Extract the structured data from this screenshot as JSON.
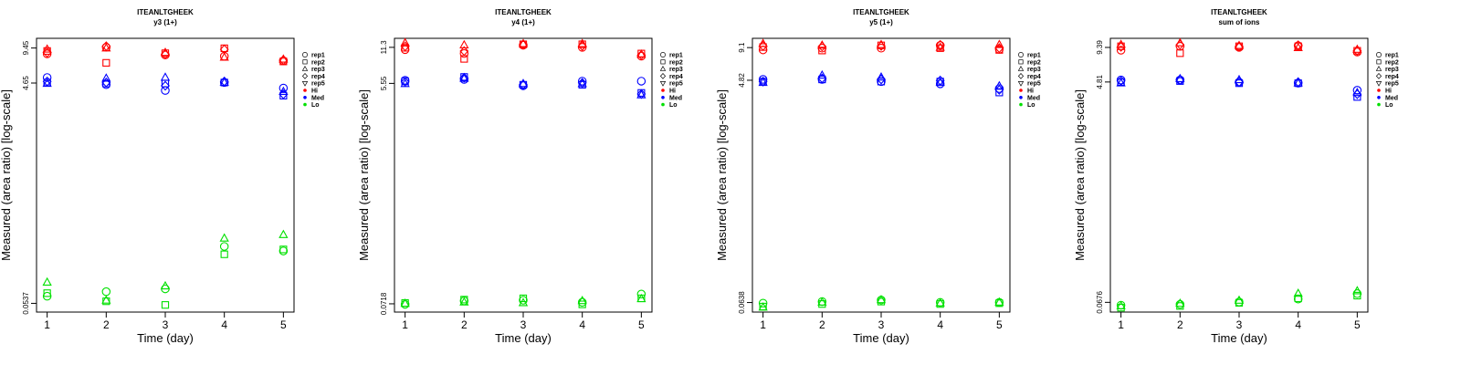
{
  "colors": {
    "Hi": "#ff0000",
    "Med": "#0000ff",
    "Lo": "#00e000"
  },
  "legend": {
    "replicates": [
      {
        "label": "rep1",
        "shape": "circle"
      },
      {
        "label": "rep2",
        "shape": "square"
      },
      {
        "label": "rep3",
        "shape": "triangle-up"
      },
      {
        "label": "rep4",
        "shape": "diamond"
      },
      {
        "label": "rep5",
        "shape": "triangle-down"
      }
    ],
    "groups": [
      "Hi",
      "Med",
      "Lo"
    ]
  },
  "chart_data": [
    {
      "type": "scatter",
      "title": "ITEANLTGHEEK",
      "subtitle": "y3 (1+)",
      "xlabel": "Time (day)",
      "ylabel": "Measured (area ratio) [log-scale]",
      "x_ticks": [
        1,
        2,
        3,
        4,
        5
      ],
      "y_ticks": [
        0.0537,
        4.65,
        9.45
      ],
      "y_scale": "log",
      "ylim": [
        0.045,
        11.5
      ],
      "series": [
        {
          "name": "rep1",
          "group": "Hi",
          "values": [
            8.4,
            9.6,
            8.2,
            8.0,
            7.3
          ]
        },
        {
          "name": "rep2",
          "group": "Hi",
          "values": [
            8.9,
            7.0,
            8.5,
            9.4,
            7.2
          ]
        },
        {
          "name": "rep3",
          "group": "Hi",
          "values": [
            9.2,
            9.4,
            8.6,
            7.8,
            7.5
          ]
        },
        {
          "name": "rep4",
          "group": "Hi",
          "values": [
            8.6,
            9.8,
            8.3,
            9.2,
            7.4
          ]
        },
        {
          "name": "rep1",
          "group": "Med",
          "values": [
            5.2,
            4.5,
            4.0,
            4.7,
            4.2
          ]
        },
        {
          "name": "rep2",
          "group": "Med",
          "values": [
            4.7,
            4.6,
            4.6,
            4.7,
            3.6
          ]
        },
        {
          "name": "rep3",
          "group": "Med",
          "values": [
            4.6,
            5.1,
            5.2,
            4.7,
            3.9
          ]
        },
        {
          "name": "rep4",
          "group": "Med",
          "values": [
            4.8,
            4.7,
            4.4,
            4.8,
            3.7
          ]
        },
        {
          "name": "rep1",
          "group": "Lo",
          "values": [
            0.062,
            0.068,
            0.072,
            0.17,
            0.155
          ]
        },
        {
          "name": "rep2",
          "group": "Lo",
          "values": [
            0.066,
            0.056,
            0.052,
            0.145,
            0.16
          ]
        },
        {
          "name": "rep3",
          "group": "Lo",
          "values": [
            0.082,
            0.057,
            0.076,
            0.2,
            0.215
          ]
        }
      ]
    },
    {
      "type": "scatter",
      "title": "ITEANLTGHEEK",
      "subtitle": "y4 (1+)",
      "xlabel": "Time (day)",
      "ylabel": "Measured (area ratio) [log-scale]",
      "x_ticks": [
        1,
        2,
        3,
        4,
        5
      ],
      "y_ticks": [
        0.0718,
        5.55,
        11.3
      ],
      "y_scale": "log",
      "ylim": [
        0.061,
        13.5
      ],
      "series": [
        {
          "name": "rep1",
          "group": "Hi",
          "values": [
            10.8,
            10.0,
            11.8,
            11.3,
            9.5
          ]
        },
        {
          "name": "rep2",
          "group": "Hi",
          "values": [
            11.2,
            9.0,
            12.0,
            12.0,
            10.0
          ]
        },
        {
          "name": "rep3",
          "group": "Hi",
          "values": [
            12.3,
            11.8,
            12.1,
            12.1,
            9.8
          ]
        },
        {
          "name": "rep4",
          "group": "Hi",
          "values": [
            11.5,
            10.5,
            11.9,
            11.6,
            9.7
          ]
        },
        {
          "name": "rep1",
          "group": "Med",
          "values": [
            5.9,
            6.0,
            5.3,
            5.8,
            5.8
          ]
        },
        {
          "name": "rep2",
          "group": "Med",
          "values": [
            5.8,
            6.3,
            5.4,
            5.4,
            4.6
          ]
        },
        {
          "name": "rep3",
          "group": "Med",
          "values": [
            5.5,
            6.1,
            5.5,
            5.5,
            4.4
          ]
        },
        {
          "name": "rep4",
          "group": "Med",
          "values": [
            5.7,
            6.2,
            5.4,
            5.6,
            4.5
          ]
        },
        {
          "name": "rep1",
          "group": "Lo",
          "values": [
            0.071,
            0.076,
            0.077,
            0.074,
            0.087
          ]
        },
        {
          "name": "rep2",
          "group": "Lo",
          "values": [
            0.073,
            0.078,
            0.08,
            0.071,
            0.08
          ]
        },
        {
          "name": "rep3",
          "group": "Lo",
          "values": [
            0.072,
            0.074,
            0.073,
            0.076,
            0.079
          ]
        }
      ]
    },
    {
      "type": "scatter",
      "title": "ITEANLTGHEEK",
      "subtitle": "y5 (1+)",
      "xlabel": "Time (day)",
      "ylabel": "Measured (area ratio) [log-scale]",
      "x_ticks": [
        1,
        2,
        3,
        4,
        5
      ],
      "y_ticks": [
        0.0638,
        4.82,
        9.1
      ],
      "y_scale": "log",
      "ylim": [
        0.053,
        10.9
      ],
      "series": [
        {
          "name": "rep1",
          "group": "Hi",
          "values": [
            8.7,
            9.0,
            9.0,
            9.5,
            8.8
          ]
        },
        {
          "name": "rep2",
          "group": "Hi",
          "values": [
            9.2,
            8.6,
            9.5,
            9.0,
            8.7
          ]
        },
        {
          "name": "rep3",
          "group": "Hi",
          "values": [
            9.8,
            9.5,
            9.6,
            9.1,
            9.6
          ]
        },
        {
          "name": "rep4",
          "group": "Hi",
          "values": [
            9.4,
            9.3,
            9.4,
            9.6,
            9.0
          ]
        },
        {
          "name": "rep1",
          "group": "Med",
          "values": [
            4.9,
            4.9,
            4.7,
            4.5,
            4.1
          ]
        },
        {
          "name": "rep2",
          "group": "Med",
          "values": [
            4.7,
            4.9,
            4.7,
            4.7,
            3.8
          ]
        },
        {
          "name": "rep3",
          "group": "Med",
          "values": [
            4.6,
            5.3,
            5.1,
            4.6,
            4.3
          ]
        },
        {
          "name": "rep4",
          "group": "Med",
          "values": [
            4.7,
            5.0,
            4.9,
            4.8,
            4.0
          ]
        },
        {
          "name": "rep1",
          "group": "Lo",
          "values": [
            0.063,
            0.065,
            0.067,
            0.064,
            0.064
          ]
        },
        {
          "name": "rep2",
          "group": "Lo",
          "values": [
            0.059,
            0.062,
            0.065,
            0.062,
            0.063
          ]
        },
        {
          "name": "rep3",
          "group": "Lo",
          "values": [
            0.058,
            0.064,
            0.067,
            0.063,
            0.064
          ]
        }
      ]
    },
    {
      "type": "scatter",
      "title": "ITEANLTGHEEK",
      "subtitle": "sum of ions",
      "xlabel": "Time (day)",
      "ylabel": "Measured (area ratio) [log-scale]",
      "x_ticks": [
        1,
        2,
        3,
        4,
        5
      ],
      "y_ticks": [
        0.0676,
        4.81,
        9.39
      ],
      "y_scale": "log",
      "ylim": [
        0.056,
        11.2
      ],
      "series": [
        {
          "name": "rep1",
          "group": "Hi",
          "values": [
            8.9,
            9.6,
            9.4,
            9.7,
            8.6
          ]
        },
        {
          "name": "rep2",
          "group": "Hi",
          "values": [
            9.6,
            8.4,
            9.6,
            9.6,
            8.8
          ]
        },
        {
          "name": "rep3",
          "group": "Hi",
          "values": [
            9.9,
            10.2,
            9.7,
            9.3,
            9.0
          ]
        },
        {
          "name": "rep4",
          "group": "Hi",
          "values": [
            9.5,
            9.9,
            9.5,
            9.8,
            8.8
          ]
        },
        {
          "name": "rep1",
          "group": "Med",
          "values": [
            5.0,
            5.0,
            4.8,
            4.7,
            4.1
          ]
        },
        {
          "name": "rep2",
          "group": "Med",
          "values": [
            4.8,
            4.9,
            4.7,
            4.7,
            3.6
          ]
        },
        {
          "name": "rep3",
          "group": "Med",
          "values": [
            4.7,
            5.1,
            5.0,
            4.7,
            3.9
          ]
        },
        {
          "name": "rep4",
          "group": "Med",
          "values": [
            4.9,
            5.0,
            4.8,
            4.8,
            3.8
          ]
        },
        {
          "name": "rep1",
          "group": "Lo",
          "values": [
            0.064,
            0.065,
            0.068,
            0.072,
            0.08
          ]
        },
        {
          "name": "rep2",
          "group": "Lo",
          "values": [
            0.061,
            0.063,
            0.067,
            0.073,
            0.077
          ]
        },
        {
          "name": "rep3",
          "group": "Lo",
          "values": [
            0.063,
            0.066,
            0.07,
            0.08,
            0.084
          ]
        }
      ]
    }
  ]
}
